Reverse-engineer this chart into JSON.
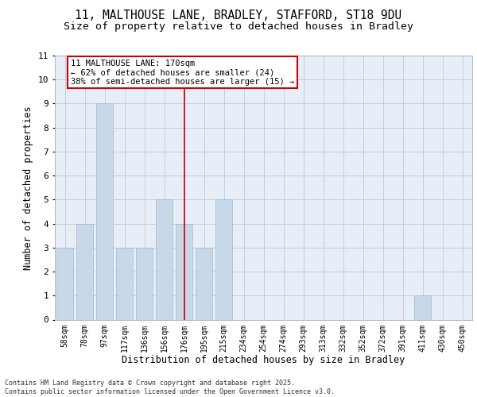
{
  "title1": "11, MALTHOUSE LANE, BRADLEY, STAFFORD, ST18 9DU",
  "title2": "Size of property relative to detached houses in Bradley",
  "xlabel": "Distribution of detached houses by size in Bradley",
  "ylabel": "Number of detached properties",
  "categories": [
    "58sqm",
    "78sqm",
    "97sqm",
    "117sqm",
    "136sqm",
    "156sqm",
    "176sqm",
    "195sqm",
    "215sqm",
    "234sqm",
    "254sqm",
    "274sqm",
    "293sqm",
    "313sqm",
    "332sqm",
    "352sqm",
    "372sqm",
    "391sqm",
    "411sqm",
    "430sqm",
    "450sqm"
  ],
  "values": [
    3,
    4,
    9,
    3,
    3,
    5,
    4,
    3,
    5,
    0,
    0,
    0,
    0,
    0,
    0,
    0,
    0,
    0,
    1,
    0,
    0
  ],
  "bar_color": "#c8d8e8",
  "bar_edge_color": "#a0b8d0",
  "vline_x_index": 6,
  "vline_color": "#cc0000",
  "ylim": [
    0,
    11
  ],
  "yticks": [
    0,
    1,
    2,
    3,
    4,
    5,
    6,
    7,
    8,
    9,
    10,
    11
  ],
  "annotation_title": "11 MALTHOUSE LANE: 170sqm",
  "annotation_line1": "← 62% of detached houses are smaller (24)",
  "annotation_line2": "38% of semi-detached houses are larger (15) →",
  "annotation_box_color": "#ffffff",
  "annotation_box_edge_color": "#cc0000",
  "grid_color": "#c0c8d8",
  "bg_color": "#e8eef8",
  "footer1": "Contains HM Land Registry data © Crown copyright and database right 2025.",
  "footer2": "Contains public sector information licensed under the Open Government Licence v3.0.",
  "title1_fontsize": 10.5,
  "title2_fontsize": 9.5,
  "tick_fontsize": 7,
  "ylabel_fontsize": 8.5,
  "xlabel_fontsize": 8.5,
  "footer_fontsize": 6.0
}
